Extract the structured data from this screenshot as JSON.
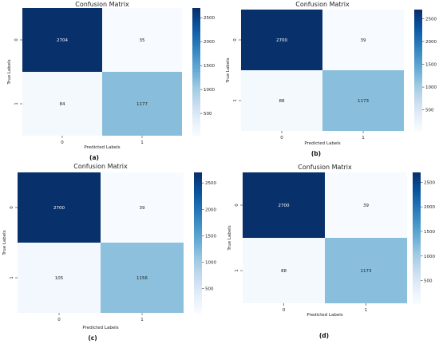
{
  "chart_data": [
    {
      "type": "heatmap",
      "panel": "(a)",
      "title": "Confusion Matrix",
      "xlabel": "Predicted Labels",
      "ylabel": "True Labels",
      "x_categories": [
        "0",
        "1"
      ],
      "y_categories": [
        "0",
        "1"
      ],
      "values": [
        [
          2704,
          35
        ],
        [
          84,
          1177
        ]
      ],
      "colorbar_ticks": [
        500,
        1000,
        1500,
        2000,
        2500
      ],
      "color_range": [
        35,
        2704
      ]
    },
    {
      "type": "heatmap",
      "panel": "(b)",
      "title": "Confusion Matrix",
      "xlabel": "Predicted Labels",
      "ylabel": "True Labels",
      "x_categories": [
        "0",
        "1"
      ],
      "y_categories": [
        "0",
        "1"
      ],
      "values": [
        [
          2700,
          39
        ],
        [
          88,
          1173
        ]
      ],
      "colorbar_ticks": [
        500,
        1000,
        1500,
        2000,
        2500
      ],
      "color_range": [
        39,
        2700
      ]
    },
    {
      "type": "heatmap",
      "panel": "(c)",
      "title": "Confusion Matrix",
      "xlabel": "Predicted Labels",
      "ylabel": "True Labels",
      "x_categories": [
        "0",
        "1"
      ],
      "y_categories": [
        "0",
        "1"
      ],
      "values": [
        [
          2700,
          39
        ],
        [
          105,
          1156
        ]
      ],
      "colorbar_ticks": [
        500,
        1000,
        1500,
        2000,
        2500
      ],
      "color_range": [
        39,
        2700
      ]
    },
    {
      "type": "heatmap",
      "panel": "(d)",
      "title": "Confusion Matrix",
      "xlabel": "Predicted Labels",
      "ylabel": "True Labels",
      "x_categories": [
        "0",
        "1"
      ],
      "y_categories": [
        "0",
        "1"
      ],
      "values": [
        [
          2700,
          39
        ],
        [
          88,
          1173
        ]
      ],
      "colorbar_ticks": [
        500,
        1000,
        1500,
        2000,
        2500
      ],
      "color_range": [
        39,
        2700
      ]
    }
  ],
  "colormap": [
    "#f7fbff",
    "#e3eef9",
    "#c6dbef",
    "#9ecae1",
    "#6baed6",
    "#4292c6",
    "#2171b5",
    "#08519c",
    "#08306b"
  ]
}
